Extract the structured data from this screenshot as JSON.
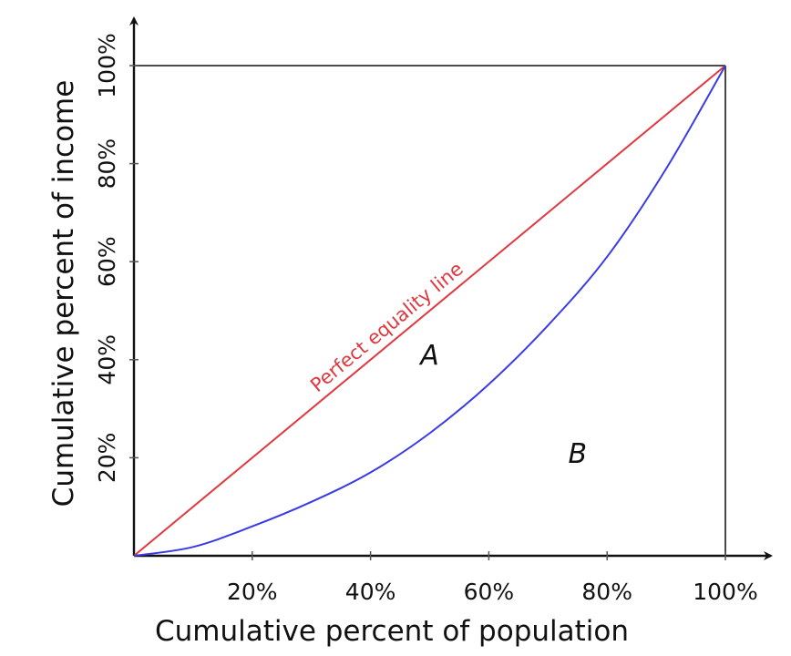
{
  "chart_data": {
    "type": "line",
    "title": "",
    "xlabel": "Cumulative percent of population",
    "ylabel": "Cumulative percent of income",
    "xlim": [
      0,
      100
    ],
    "ylim": [
      0,
      100
    ],
    "x_ticks": [
      {
        "value": 20,
        "label": "20%"
      },
      {
        "value": 40,
        "label": "40%"
      },
      {
        "value": 60,
        "label": "60%"
      },
      {
        "value": 80,
        "label": "80%"
      },
      {
        "value": 100,
        "label": "100%"
      }
    ],
    "y_ticks": [
      {
        "value": 20,
        "label": "20%"
      },
      {
        "value": 40,
        "label": "40%"
      },
      {
        "value": 60,
        "label": "60%"
      },
      {
        "value": 80,
        "label": "80%"
      },
      {
        "value": 100,
        "label": "100%"
      }
    ],
    "grid": false,
    "series": [
      {
        "name": "Perfect equality line",
        "color": "#e0383f",
        "x": [
          0,
          100
        ],
        "y": [
          0,
          100
        ]
      },
      {
        "color": "#3a3ae6",
        "x": [
          0,
          10,
          20,
          30,
          40,
          50,
          60,
          70,
          80,
          90,
          100
        ],
        "y": [
          0,
          1.8,
          6,
          11,
          17,
          25,
          35,
          47,
          61,
          79,
          100
        ]
      }
    ],
    "annotations": [
      {
        "text": "A",
        "x": 50,
        "y": 39
      },
      {
        "text": "B",
        "x": 75,
        "y": 19
      }
    ],
    "reference_lines": [
      {
        "x": [
          0,
          100
        ],
        "y": [
          100,
          100
        ]
      },
      {
        "x": [
          100,
          100
        ],
        "y": [
          0,
          100
        ]
      }
    ],
    "colors": {
      "axis": "#111111",
      "frame": "#333333"
    }
  }
}
